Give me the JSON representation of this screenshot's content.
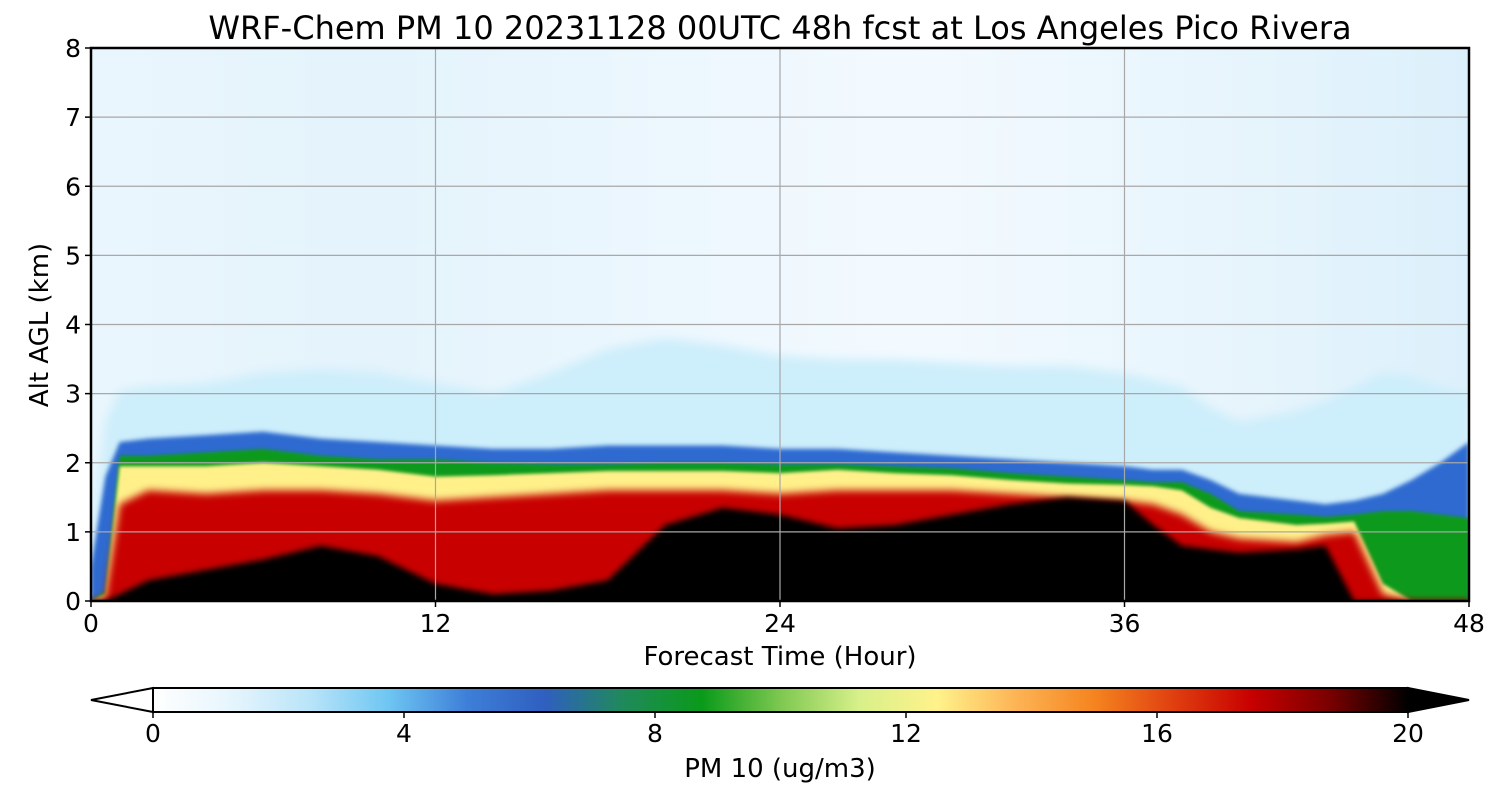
{
  "chart_data": {
    "type": "heatmap",
    "title": "WRF-Chem PM 10  20231128 00UTC 48h fcst at Los Angeles Pico Rivera",
    "xlabel": "Forecast Time (Hour)",
    "ylabel": "Alt AGL (km)",
    "xlim": [
      0,
      48
    ],
    "ylim": [
      0,
      8
    ],
    "x_ticks": [
      "0",
      "12",
      "24",
      "36",
      "48"
    ],
    "y_ticks": [
      "0",
      "1",
      "2",
      "3",
      "4",
      "5",
      "6",
      "7",
      "8"
    ],
    "grid": true,
    "colorbar": {
      "label": "PM 10  (ug/m3)",
      "range": [
        0,
        20
      ],
      "ticks": [
        "0",
        "4",
        "8",
        "12",
        "16",
        "20"
      ],
      "extend": "both",
      "colors": [
        "#ffffff",
        "#e6f5fd",
        "#b9e4f9",
        "#6ec6f2",
        "#3e7fd8",
        "#2f5fc0",
        "#1f8a5a",
        "#0a9a1a",
        "#7ec850",
        "#d8f08a",
        "#fff28a",
        "#fdb455",
        "#f5841f",
        "#e04010",
        "#c80000",
        "#7a0000",
        "#000000"
      ]
    },
    "x_hours": [
      0,
      0.5,
      1,
      2,
      4,
      6,
      8,
      10,
      12,
      14,
      16,
      18,
      20,
      22,
      24,
      26,
      28,
      30,
      32,
      34,
      36,
      37,
      38,
      39,
      40,
      42,
      43,
      44,
      45,
      46,
      47,
      48
    ],
    "profiles": [
      {
        "name": "black_top",
        "values": [
          0,
          0,
          0.1,
          0.3,
          0.45,
          0.6,
          0.8,
          0.65,
          0.25,
          0.1,
          0.15,
          0.3,
          1.1,
          1.35,
          1.25,
          1.05,
          1.1,
          1.25,
          1.4,
          1.5,
          1.45,
          1.1,
          0.8,
          0.75,
          0.7,
          0.75,
          0.8,
          0,
          0,
          0,
          0,
          0
        ]
      },
      {
        "name": "red_top",
        "values": [
          0,
          0.05,
          1.4,
          1.6,
          1.55,
          1.6,
          1.6,
          1.55,
          1.45,
          1.5,
          1.55,
          1.6,
          1.6,
          1.6,
          1.55,
          1.6,
          1.6,
          1.6,
          1.55,
          1.5,
          1.45,
          1.4,
          1.25,
          1.0,
          0.9,
          0.85,
          0.95,
          1.0,
          0.1,
          0,
          0,
          0
        ]
      },
      {
        "name": "yellow_top",
        "values": [
          0,
          0.1,
          1.95,
          1.95,
          1.95,
          2.0,
          1.95,
          1.9,
          1.8,
          1.82,
          1.85,
          1.88,
          1.88,
          1.88,
          1.85,
          1.9,
          1.85,
          1.82,
          1.75,
          1.7,
          1.68,
          1.66,
          1.6,
          1.35,
          1.2,
          1.1,
          1.12,
          1.15,
          0.25,
          0,
          0,
          0
        ]
      },
      {
        "name": "green_top",
        "values": [
          0,
          0.15,
          2.1,
          2.1,
          2.15,
          2.2,
          2.1,
          2.05,
          2.05,
          2.0,
          1.98,
          1.98,
          2.0,
          2.0,
          1.98,
          1.98,
          1.95,
          1.92,
          1.85,
          1.8,
          1.75,
          1.72,
          1.72,
          1.55,
          1.3,
          1.25,
          1.22,
          1.25,
          1.3,
          1.3,
          1.25,
          1.2
        ]
      },
      {
        "name": "blue_top",
        "values": [
          0.5,
          1.8,
          2.3,
          2.35,
          2.4,
          2.45,
          2.35,
          2.3,
          2.25,
          2.2,
          2.2,
          2.25,
          2.25,
          2.25,
          2.2,
          2.2,
          2.15,
          2.1,
          2.05,
          2.0,
          1.95,
          1.9,
          1.9,
          1.75,
          1.55,
          1.45,
          1.4,
          1.45,
          1.55,
          1.75,
          2.0,
          2.3
        ]
      },
      {
        "name": "lightblue_top",
        "values": [
          0.8,
          2.6,
          3.05,
          3.1,
          3.15,
          3.3,
          3.35,
          3.3,
          3.15,
          3.0,
          3.3,
          3.65,
          3.8,
          3.7,
          3.55,
          3.5,
          3.5,
          3.45,
          3.4,
          3.4,
          3.3,
          3.2,
          3.1,
          2.8,
          2.6,
          2.75,
          2.9,
          3.1,
          3.3,
          3.25,
          3.1,
          3.0
        ]
      }
    ]
  }
}
